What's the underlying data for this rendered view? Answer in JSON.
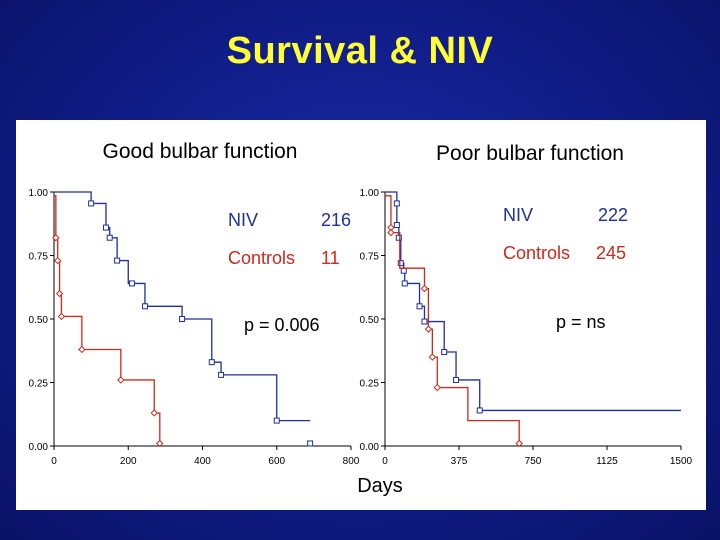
{
  "slide": {
    "title": "Survival & NIV",
    "x_axis_label": "Days"
  },
  "colors": {
    "niv": "#1f2f9c",
    "controls": "#cc2a1a",
    "axis": "#000000",
    "title": "#ffff33"
  },
  "chart_data": [
    {
      "type": "line",
      "step": true,
      "title": "Good bulbar function",
      "xlim": [
        0,
        800
      ],
      "ylim": [
        0,
        1
      ],
      "x_ticks": [
        "0",
        "200",
        "400",
        "600",
        "800"
      ],
      "y_ticks": [
        "0.00",
        "0.25",
        "0.50",
        "0.75",
        "1.00"
      ],
      "annotations": {
        "niv_label": "NIV",
        "niv_n": "216",
        "controls_label": "Controls",
        "controls_n": "11",
        "p_value": "p = 0.006"
      },
      "series": [
        {
          "name": "NIV",
          "color_key": "niv",
          "steps": [
            [
              0,
              1.0
            ],
            [
              100,
              0.955
            ],
            [
              140,
              0.86
            ],
            [
              150,
              0.82
            ],
            [
              170,
              0.73
            ],
            [
              200,
              0.64
            ],
            [
              245,
              0.55
            ],
            [
              345,
              0.5
            ],
            [
              425,
              0.33
            ],
            [
              450,
              0.28
            ],
            [
              600,
              0.1
            ],
            [
              690,
              0.1
            ]
          ],
          "censored": [
            [
              100,
              0.955
            ],
            [
              140,
              0.86
            ],
            [
              150,
              0.82
            ],
            [
              170,
              0.73
            ],
            [
              210,
              0.64
            ],
            [
              245,
              0.55
            ],
            [
              345,
              0.5
            ],
            [
              425,
              0.33
            ],
            [
              450,
              0.28
            ],
            [
              600,
              0.1
            ],
            [
              690,
              0.01
            ]
          ]
        },
        {
          "name": "Controls",
          "color_key": "controls",
          "steps": [
            [
              0,
              0.985
            ],
            [
              5,
              0.82
            ],
            [
              10,
              0.73
            ],
            [
              15,
              0.6
            ],
            [
              20,
              0.51
            ],
            [
              75,
              0.38
            ],
            [
              180,
              0.26
            ],
            [
              270,
              0.13
            ],
            [
              285,
              0.01
            ]
          ],
          "censored": [
            [
              5,
              0.82
            ],
            [
              10,
              0.73
            ],
            [
              15,
              0.6
            ],
            [
              20,
              0.51
            ],
            [
              75,
              0.38
            ],
            [
              180,
              0.26
            ],
            [
              270,
              0.13
            ],
            [
              285,
              0.01
            ]
          ]
        }
      ]
    },
    {
      "type": "line",
      "step": true,
      "title": "Poor bulbar function",
      "xlim": [
        0,
        1500
      ],
      "ylim": [
        0,
        1
      ],
      "x_ticks": [
        "0",
        "375",
        "750",
        "1125",
        "1500"
      ],
      "y_ticks": [
        "0.00",
        "0.25",
        "0.50",
        "0.75",
        "1.00"
      ],
      "annotations": {
        "niv_label": "NIV",
        "niv_n": "222",
        "controls_label": "Controls",
        "controls_n": "245",
        "p_value": "p = ns"
      },
      "series": [
        {
          "name": "NIV",
          "color_key": "niv",
          "steps": [
            [
              0,
              1.0
            ],
            [
              60,
              0.955
            ],
            [
              60,
              0.87
            ],
            [
              70,
              0.82
            ],
            [
              80,
              0.72
            ],
            [
              95,
              0.69
            ],
            [
              100,
              0.64
            ],
            [
              175,
              0.55
            ],
            [
              200,
              0.49
            ],
            [
              300,
              0.37
            ],
            [
              360,
              0.26
            ],
            [
              480,
              0.14
            ],
            [
              1000,
              0.14
            ],
            [
              1500,
              0.14
            ]
          ],
          "censored": [
            [
              60,
              0.955
            ],
            [
              60,
              0.87
            ],
            [
              70,
              0.82
            ],
            [
              80,
              0.72
            ],
            [
              95,
              0.69
            ],
            [
              100,
              0.64
            ],
            [
              175,
              0.55
            ],
            [
              200,
              0.49
            ],
            [
              300,
              0.37
            ],
            [
              360,
              0.26
            ],
            [
              480,
              0.14
            ]
          ]
        },
        {
          "name": "Controls",
          "color_key": "controls",
          "steps": [
            [
              0,
              0.985
            ],
            [
              30,
              0.86
            ],
            [
              30,
              0.84
            ],
            [
              75,
              0.7
            ],
            [
              200,
              0.62
            ],
            [
              220,
              0.46
            ],
            [
              240,
              0.35
            ],
            [
              265,
              0.23
            ],
            [
              420,
              0.1
            ],
            [
              680,
              0.01
            ]
          ],
          "censored": [
            [
              30,
              0.86
            ],
            [
              30,
              0.84
            ],
            [
              200,
              0.62
            ],
            [
              220,
              0.46
            ],
            [
              240,
              0.35
            ],
            [
              265,
              0.23
            ],
            [
              680,
              0.01
            ]
          ]
        }
      ]
    }
  ]
}
